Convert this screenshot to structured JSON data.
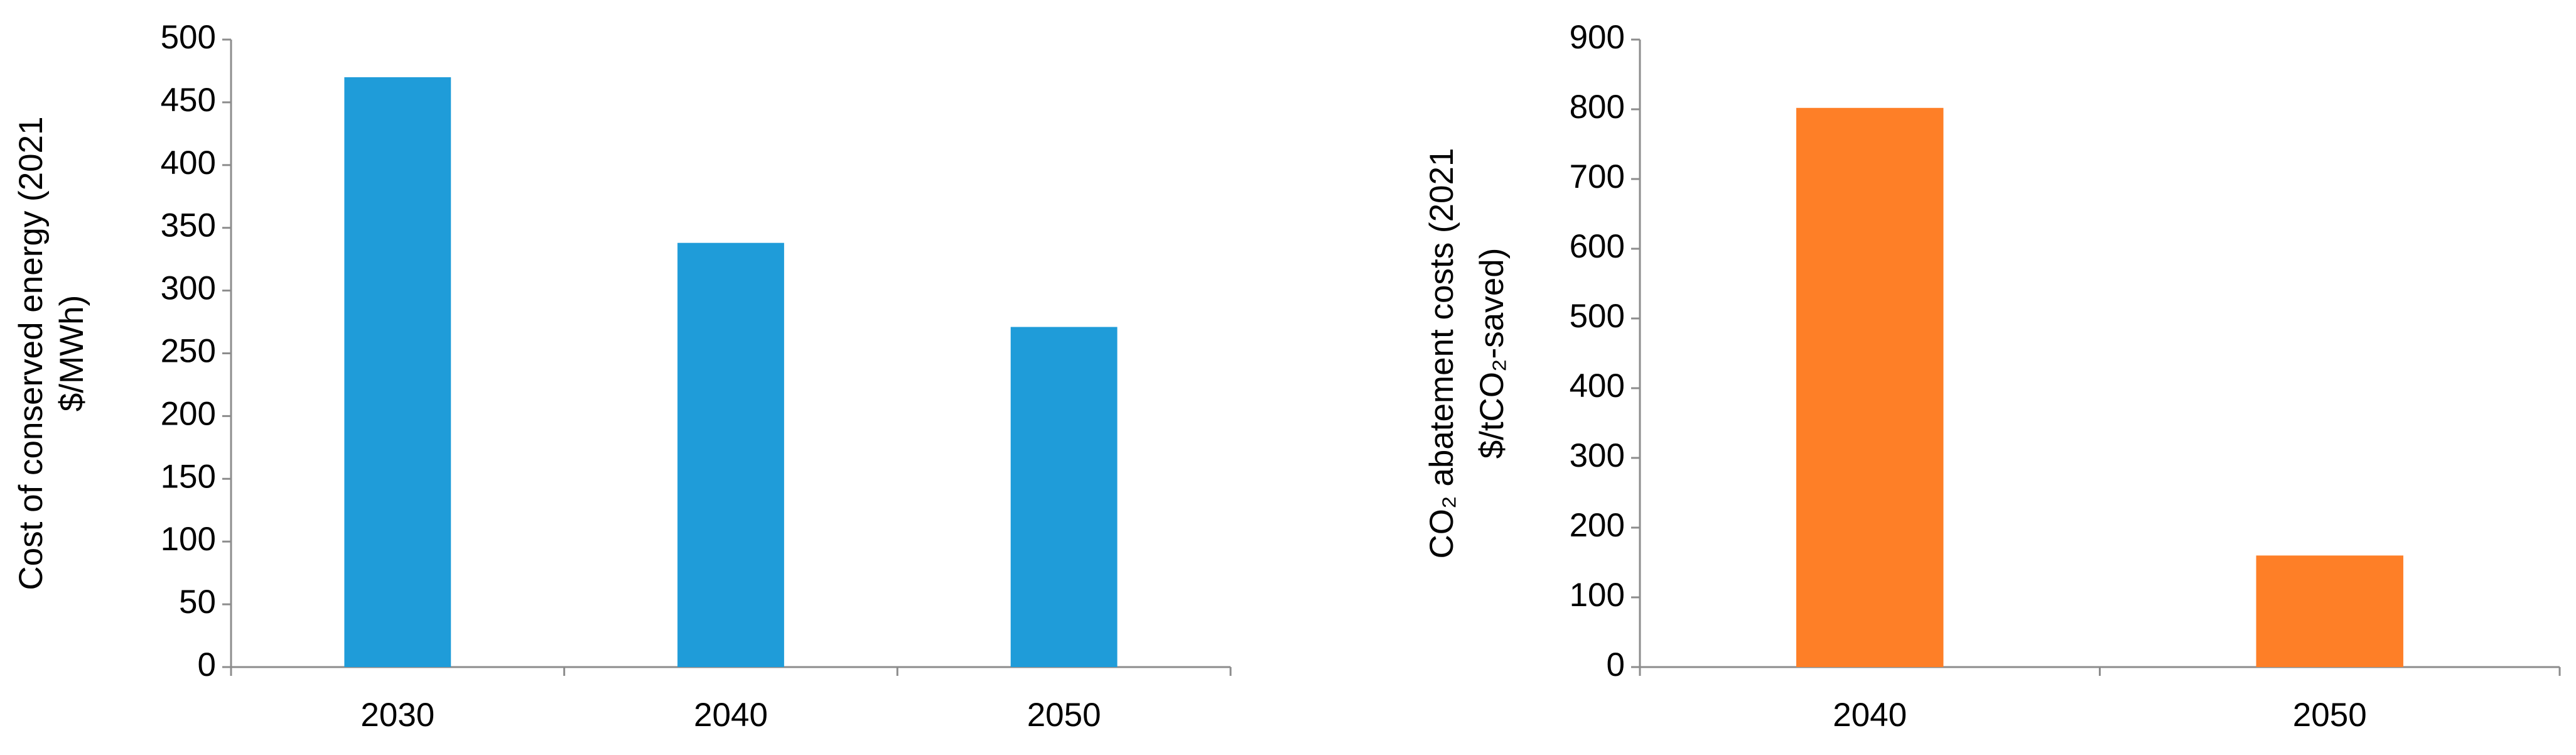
{
  "chart_data": [
    {
      "type": "bar",
      "ylabel": [
        "Cost of conserved energy (2021",
        "$/MWh)"
      ],
      "categories": [
        "2030",
        "2040",
        "2050"
      ],
      "values": [
        470,
        338,
        271
      ],
      "color": "#1f9cd9",
      "ylim": [
        0,
        500
      ],
      "yticks": [
        0,
        50,
        100,
        150,
        200,
        250,
        300,
        350,
        400,
        450,
        500
      ]
    },
    {
      "type": "bar",
      "ylabel": [
        "CO₂ abatement costs (2021",
        "$/tCO₂-saved)"
      ],
      "categories": [
        "2040",
        "2050"
      ],
      "values": [
        802,
        160
      ],
      "color": "#fe7f27",
      "ylim": [
        0,
        900
      ],
      "yticks": [
        0,
        100,
        200,
        300,
        400,
        500,
        600,
        700,
        800,
        900
      ]
    }
  ]
}
